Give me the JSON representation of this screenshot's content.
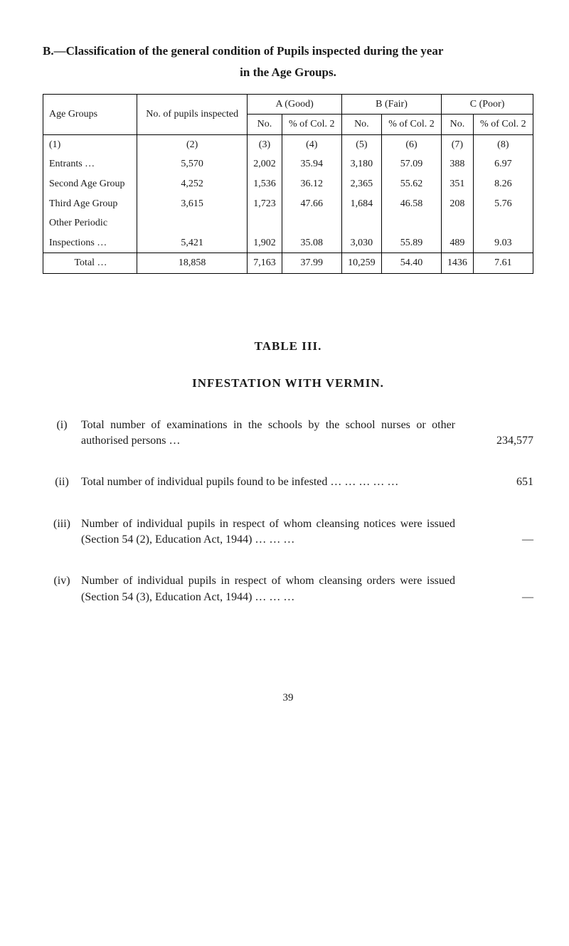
{
  "heading": {
    "line1": "B.—Classification of the general condition of Pupils inspected during the year",
    "line2": "in the Age Groups."
  },
  "table": {
    "header": {
      "age_groups": "Age Groups",
      "noof_pupils": "No. of pupils inspected",
      "A": "A (Good)",
      "B": "B (Fair)",
      "C": "C (Poor)",
      "No": "No.",
      "pct": "% of Col. 2"
    },
    "colnums_row": [
      "(1)",
      "(2)",
      "(3)",
      "(4)",
      "(5)",
      "(6)",
      "(7)",
      "(8)"
    ],
    "rows": [
      {
        "label": "Entrants       …",
        "c2": "5,570",
        "c3": "2,002",
        "c4": "35.94",
        "c5": "3,180",
        "c6": "57.09",
        "c7": "388",
        "c8": "6.97"
      },
      {
        "label": "Second Age Group",
        "c2": "4,252",
        "c3": "1,536",
        "c4": "36.12",
        "c5": "2,365",
        "c6": "55.62",
        "c7": "351",
        "c8": "8.26"
      },
      {
        "label": "Third Age Group",
        "c2": "3,615",
        "c3": "1,723",
        "c4": "47.66",
        "c5": "1,684",
        "c6": "46.58",
        "c7": "208",
        "c8": "5.76"
      },
      {
        "label": "Other Periodic",
        "c2": "",
        "c3": "",
        "c4": "",
        "c5": "",
        "c6": "",
        "c7": "",
        "c8": ""
      },
      {
        "label": "  Inspections   …",
        "c2": "5,421",
        "c3": "1,902",
        "c4": "35.08",
        "c5": "3,030",
        "c6": "55.89",
        "c7": "489",
        "c8": "9.03"
      }
    ],
    "total_row": {
      "label": "Total   …",
      "c2": "18,858",
      "c3": "7,163",
      "c4": "37.99",
      "c5": "10,259",
      "c6": "54.40",
      "c7": "1436",
      "c8": "7.61"
    }
  },
  "table3": {
    "title": "TABLE III.",
    "subtitle": "INFESTATION WITH VERMIN.",
    "items": [
      {
        "marker": "(i)",
        "text": "Total number of examinations in the schools by the school nurses or other authorised persons   …",
        "value": "234,577"
      },
      {
        "marker": "(ii)",
        "text": "Total number of individual pupils found to be infested   …      …      …      …      …",
        "value": "651"
      },
      {
        "marker": "(iii)",
        "text": "Number of individual pupils in respect of whom cleansing notices were issued (Section 54 (2), Education Act, 1944)      …      …      …",
        "value": "—"
      },
      {
        "marker": "(iv)",
        "text": "Number of individual pupils in respect of whom cleansing orders were issued (Section 54 (3), Education Act, 1944)      …      …      …",
        "value": "—"
      }
    ]
  },
  "page_number": "39",
  "colors": {
    "background": "#ffffff",
    "text": "#1a1a1a",
    "border": "#000000"
  },
  "typography": {
    "body_font": "Times New Roman",
    "body_size_pt": 12,
    "heading_size_pt": 13,
    "heading_weight": "bold"
  }
}
